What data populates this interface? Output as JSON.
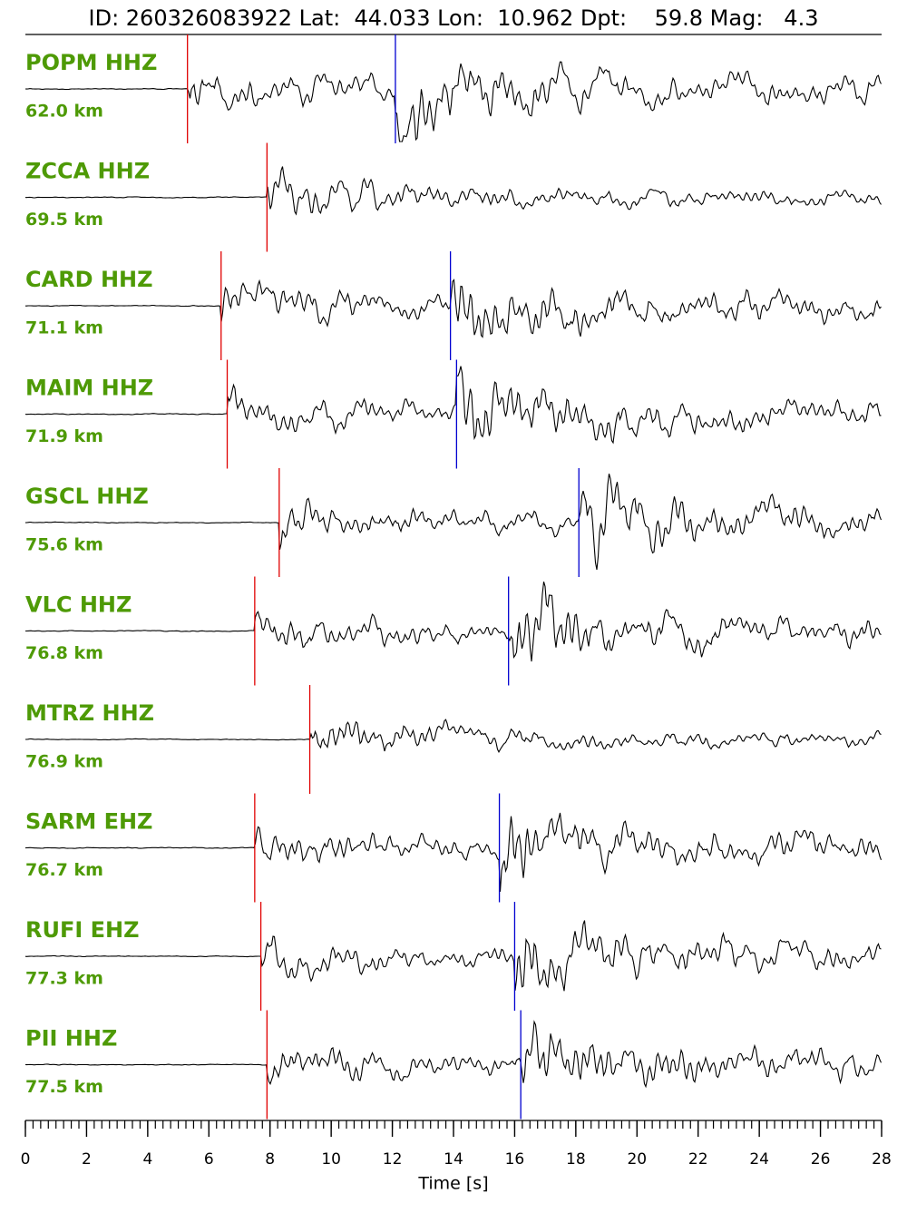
{
  "chart_data": {
    "type": "seismogram",
    "title": "ID: 260326083922 Lat:  44.033 Lon:  10.962 Dpt:    59.8 Mag:   4.3",
    "x_label": "Time [s]",
    "xlim": [
      0,
      28
    ],
    "xticks": [
      0,
      2,
      4,
      6,
      8,
      10,
      12,
      14,
      16,
      18,
      20,
      22,
      24,
      26,
      28
    ],
    "xminor": 0.25,
    "p_color": "#e00000",
    "s_color": "#0000d0",
    "trace_color": "#000000",
    "stations": [
      {
        "label": "POPM HHZ",
        "distance": "62.0 km",
        "p": 5.3,
        "s": 12.1
      },
      {
        "label": "ZCCA HHZ",
        "distance": "69.5 km",
        "p": 7.9,
        "s": null
      },
      {
        "label": "CARD HHZ",
        "distance": "71.1 km",
        "p": 6.4,
        "s": 13.9
      },
      {
        "label": "MAIM HHZ",
        "distance": "71.9 km",
        "p": 6.6,
        "s": 14.1
      },
      {
        "label": "GSCL HHZ",
        "distance": "75.6 km",
        "p": 8.3,
        "s": 18.1
      },
      {
        "label": "VLC HHZ",
        "distance": "76.8 km",
        "p": 7.5,
        "s": 15.8
      },
      {
        "label": "MTRZ HHZ",
        "distance": "76.9 km",
        "p": 9.3,
        "s": null
      },
      {
        "label": "SARM EHZ",
        "distance": "76.7 km",
        "p": 7.5,
        "s": 15.5
      },
      {
        "label": "RUFI EHZ",
        "distance": "77.3 km",
        "p": 7.7,
        "s": 16.0
      },
      {
        "label": "PII HHZ",
        "distance": "77.5 km",
        "p": 7.9,
        "s": 16.2
      }
    ]
  }
}
